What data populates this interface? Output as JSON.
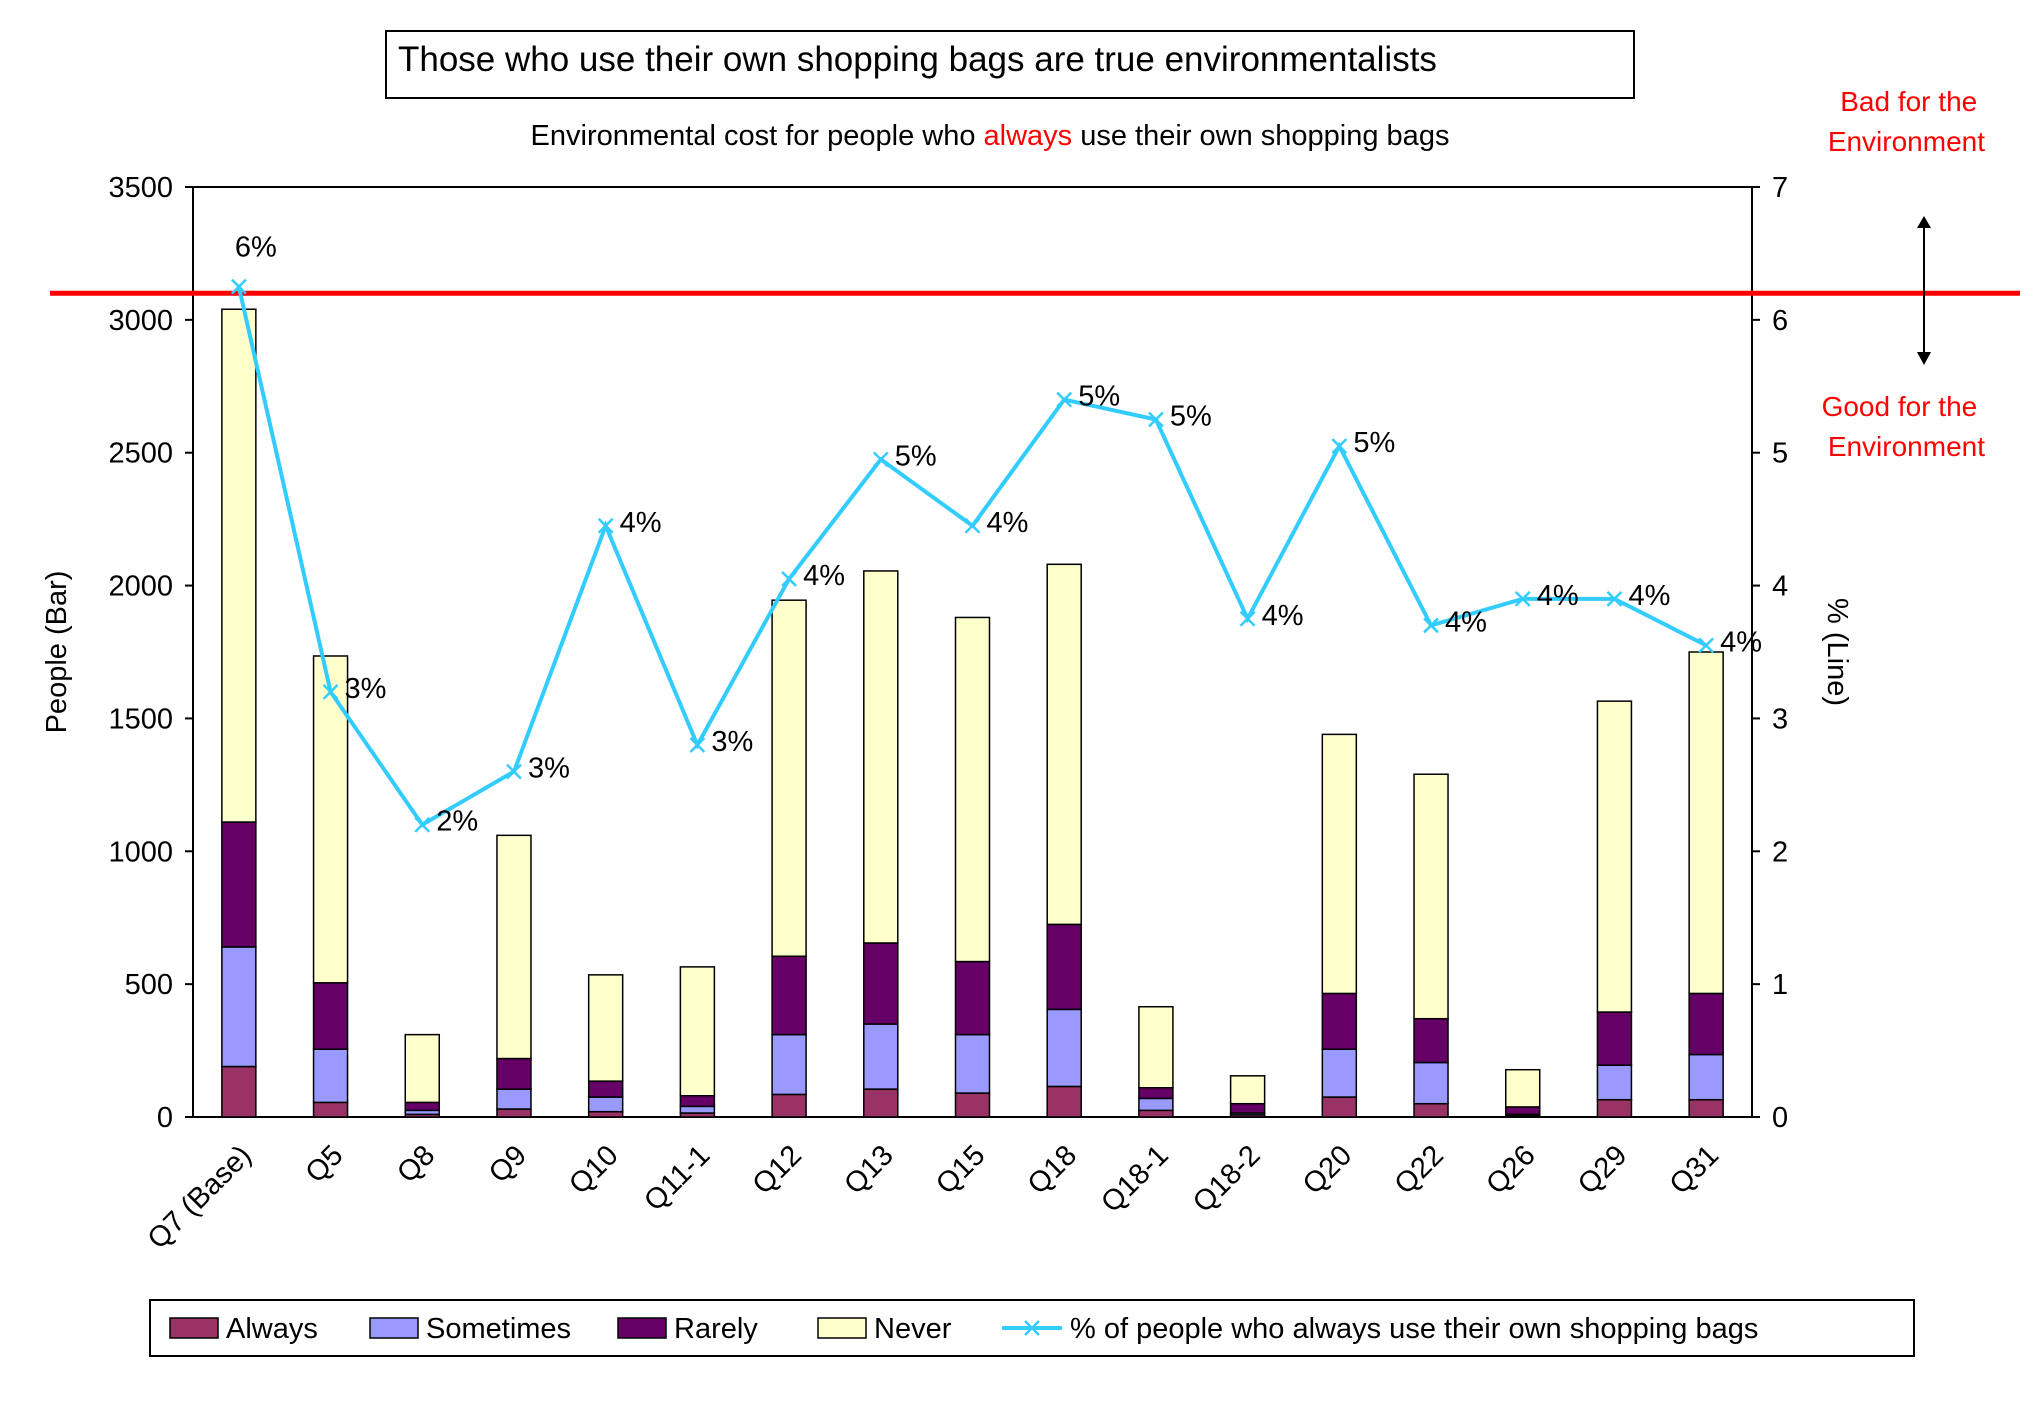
{
  "chart_data": {
    "type": "bar",
    "title": "Those who use their own shopping bags are true environmentalists",
    "subtitle": {
      "before": "Environmental cost for people who ",
      "highlight": "always",
      "after": " use their own shopping bags"
    },
    "xlabel": "",
    "ylabel": "People (Bar)",
    "y2label": "% (Line)",
    "ylim": [
      0,
      3500
    ],
    "y2lim": [
      0,
      7
    ],
    "yticks": [
      "0",
      "500",
      "1000",
      "1500",
      "2000",
      "2500",
      "3000",
      "3500"
    ],
    "y2ticks": [
      "0",
      "1",
      "2",
      "3",
      "4",
      "5",
      "6",
      "7"
    ],
    "grid": false,
    "legend_position": "bottom",
    "categories": [
      "Q7 (Base)",
      "Q5",
      "Q8",
      "Q9",
      "Q10",
      "Q11-1",
      "Q12",
      "Q13",
      "Q15",
      "Q18",
      "Q18-1",
      "Q18-2",
      "Q20",
      "Q22",
      "Q26",
      "Q29",
      "Q31"
    ],
    "series": [
      {
        "name": "Always",
        "color": "#993366",
        "values": [
          190,
          55,
          10,
          30,
          20,
          15,
          85,
          105,
          90,
          115,
          25,
          8,
          75,
          50,
          5,
          65,
          65
        ]
      },
      {
        "name": "Sometimes",
        "color": "#9999FF",
        "values": [
          450,
          200,
          15,
          75,
          55,
          25,
          225,
          245,
          220,
          290,
          45,
          7,
          180,
          155,
          5,
          130,
          170
        ]
      },
      {
        "name": "Rarely",
        "color": "#660066",
        "values": [
          470,
          250,
          30,
          115,
          60,
          40,
          295,
          305,
          275,
          320,
          40,
          35,
          210,
          165,
          28,
          200,
          230
        ]
      },
      {
        "name": "Never",
        "color": "#FFFFCC",
        "values": [
          1930,
          1230,
          255,
          840,
          400,
          485,
          1340,
          1400,
          1295,
          1355,
          305,
          105,
          975,
          920,
          140,
          1170,
          1285
        ]
      }
    ],
    "line": {
      "name": "% of people who always use their own shopping bags",
      "color": "#33CCFF",
      "values": [
        6.25,
        3.2,
        2.2,
        2.6,
        4.45,
        2.8,
        4.05,
        4.95,
        4.45,
        5.4,
        5.25,
        3.75,
        5.05,
        3.7,
        3.9,
        3.9,
        3.55
      ],
      "labels": [
        "6%",
        "3%",
        "2%",
        "3%",
        "4%",
        "3%",
        "4%",
        "5%",
        "4%",
        "5%",
        "5%",
        "4%",
        "5%",
        "4%",
        "4%",
        "4%",
        "4%"
      ]
    },
    "reference_line": {
      "value": 6.2,
      "color": "#FF0000"
    },
    "annotations": {
      "bad": [
        "Bad for the",
        "Environment"
      ],
      "good": [
        "Good for the",
        "Environment"
      ],
      "color": "#FF0000"
    }
  }
}
